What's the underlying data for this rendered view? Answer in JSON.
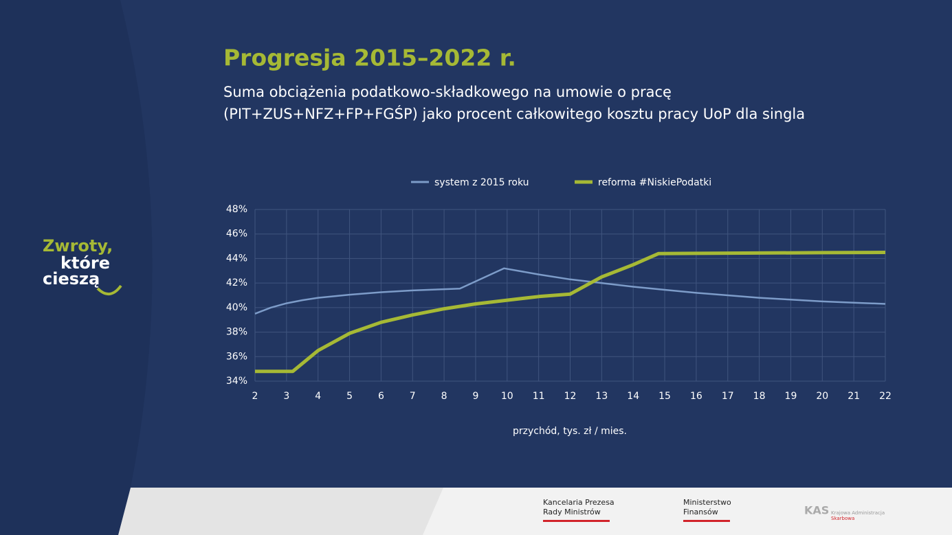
{
  "chart_data": {
    "type": "line",
    "title": "Progresja 2015–2022 r.",
    "subtitle": [
      "Suma obciążenia podatkowo-składkowego na umowie o pracę",
      "(PIT+ZUS+NFZ+FP+FGŚP) jako procent całkowitego kosztu pracy UoP dla singla"
    ],
    "xlabel": "przychód, tys. zł / mies.",
    "series": [
      {
        "name": "system z 2015 roku",
        "color": "#7d9cc9",
        "x": [
          2,
          2.5,
          3,
          3.5,
          4,
          5,
          6,
          7,
          8,
          8.5,
          9.9,
          11,
          12,
          13,
          14,
          15,
          16,
          17,
          18,
          19,
          20,
          21,
          22
        ],
        "values": [
          39.5,
          40.0,
          40.35,
          40.6,
          40.8,
          41.05,
          41.25,
          41.4,
          41.5,
          41.55,
          43.2,
          42.7,
          42.3,
          42.0,
          41.7,
          41.45,
          41.2,
          41.0,
          40.8,
          40.65,
          40.5,
          40.4,
          40.3
        ]
      },
      {
        "name": "reforma #NiskiePodatki",
        "color": "#a6b935",
        "x": [
          2,
          3.2,
          4,
          5,
          6,
          7,
          8,
          9,
          10,
          11,
          12,
          13,
          14,
          14.8,
          16,
          18,
          20,
          22
        ],
        "values": [
          34.8,
          34.8,
          36.5,
          37.9,
          38.8,
          39.4,
          39.9,
          40.3,
          40.6,
          40.9,
          41.1,
          42.5,
          43.5,
          44.4,
          44.42,
          44.45,
          44.48,
          44.5
        ]
      }
    ],
    "xlim": [
      2,
      22
    ],
    "xticks": [
      2,
      3,
      4,
      5,
      6,
      7,
      8,
      9,
      10,
      11,
      12,
      13,
      14,
      15,
      16,
      17,
      18,
      19,
      20,
      21,
      22
    ],
    "ylim": [
      34,
      48
    ],
    "yticks": [
      {
        "value": 34,
        "label": "34%"
      },
      {
        "value": 36,
        "label": "36%"
      },
      {
        "value": 38,
        "label": "38%"
      },
      {
        "value": 40,
        "label": "40%"
      },
      {
        "value": 42,
        "label": "42%"
      },
      {
        "value": 44,
        "label": "44%"
      },
      {
        "value": 46,
        "label": "46%"
      },
      {
        "value": 48,
        "label": "48%"
      }
    ],
    "grid": true,
    "legend": "top"
  },
  "logo": [
    "Zwroty,",
    "które",
    "cieszą"
  ],
  "footer": [
    [
      "Kancelaria Prezesa",
      "Rady Ministrów"
    ],
    [
      "Ministerstwo",
      "Finansów"
    ],
    [
      "Krajowa Administracja",
      "Skarbowa"
    ]
  ]
}
